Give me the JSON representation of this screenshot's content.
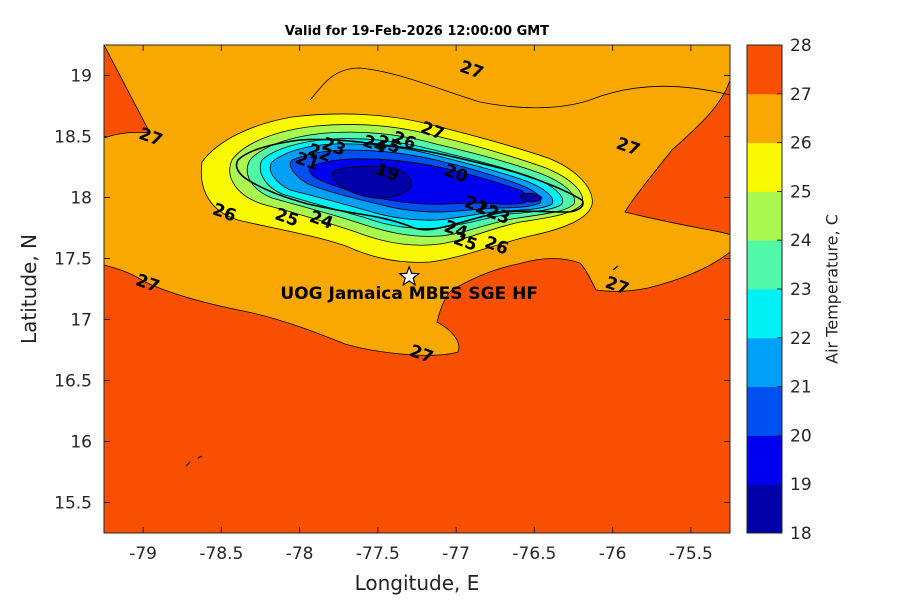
{
  "title": "Valid for 19-Feb-2026 12:00:00 GMT",
  "map": {
    "xlabel": "Longitude, E",
    "ylabel": "Latitude, N",
    "xlim": [
      -79.25,
      -75.25
    ],
    "ylim": [
      15.25,
      19.25
    ],
    "xticks": [
      "-79",
      "-78.5",
      "-78",
      "-77.5",
      "-77",
      "-76.5",
      "-76",
      "-75.5"
    ],
    "yticks": [
      "19",
      "18.5",
      "18",
      "17.5",
      "17",
      "16.5",
      "16",
      "15.5"
    ],
    "site": {
      "label": "UOG Jamaica MBES SGE HF",
      "lon": -77.3,
      "lat": 17.35
    },
    "contour_labels": [
      {
        "text": "27",
        "lon": -78.95,
        "lat": 18.5
      },
      {
        "text": "27",
        "lon": -76.9,
        "lat": 19.05
      },
      {
        "text": "27",
        "lon": -77.15,
        "lat": 18.55
      },
      {
        "text": "27",
        "lon": -75.9,
        "lat": 18.42
      },
      {
        "text": "27",
        "lon": -78.97,
        "lat": 17.3
      },
      {
        "text": "27",
        "lon": -75.97,
        "lat": 17.28
      },
      {
        "text": "27",
        "lon": -77.22,
        "lat": 16.72
      },
      {
        "text": "26",
        "lon": -78.48,
        "lat": 17.88
      },
      {
        "text": "26",
        "lon": -77.33,
        "lat": 18.47
      },
      {
        "text": "26",
        "lon": -76.74,
        "lat": 17.61
      },
      {
        "text": "25",
        "lon": -78.08,
        "lat": 17.84
      },
      {
        "text": "25",
        "lon": -76.94,
        "lat": 17.64
      },
      {
        "text": "25",
        "lon": -77.43,
        "lat": 18.44
      },
      {
        "text": "24",
        "lon": -77.86,
        "lat": 17.82
      },
      {
        "text": "24",
        "lon": -77.52,
        "lat": 18.44
      },
      {
        "text": "24",
        "lon": -77.0,
        "lat": 17.74
      },
      {
        "text": "23",
        "lon": -77.78,
        "lat": 18.42
      },
      {
        "text": "23",
        "lon": -76.73,
        "lat": 17.86
      },
      {
        "text": "22",
        "lon": -77.87,
        "lat": 18.37
      },
      {
        "text": "22",
        "lon": -76.8,
        "lat": 17.9
      },
      {
        "text": "21",
        "lon": -77.95,
        "lat": 18.3
      },
      {
        "text": "21",
        "lon": -76.87,
        "lat": 17.94
      },
      {
        "text": "20",
        "lon": -77.0,
        "lat": 18.2
      },
      {
        "text": "19",
        "lon": -77.44,
        "lat": 18.21
      }
    ]
  },
  "colorbar": {
    "label": "Air Temperature, C",
    "levels": [
      "18",
      "19",
      "20",
      "21",
      "22",
      "23",
      "24",
      "25",
      "26",
      "27",
      "28"
    ],
    "colors": [
      "#0000a8",
      "#0000f0",
      "#0050f0",
      "#00a0f8",
      "#00f0f8",
      "#50f8a8",
      "#a8f850",
      "#f8f800",
      "#f8a800",
      "#f85000",
      "#f80000"
    ]
  }
}
